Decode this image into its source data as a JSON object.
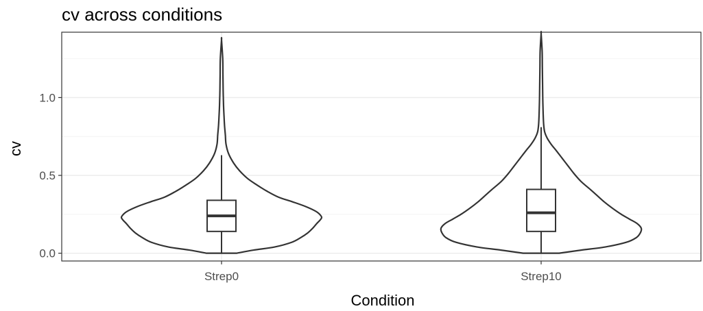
{
  "chart_data": {
    "type": "violin",
    "title": "cv across conditions",
    "xlabel": "Condition",
    "ylabel": "cv",
    "categories": [
      "Strep0",
      "Strep10"
    ],
    "ylim": [
      -0.05,
      1.42
    ],
    "y_ticks": [
      0.0,
      0.5,
      1.0
    ],
    "y_tick_labels": [
      "0.0",
      "0.5",
      "1.0"
    ],
    "grid": true,
    "legend": "none",
    "colors": {
      "outline": "#333333",
      "grid_major": "#ebebeb",
      "grid_minor": "#f4f4f4",
      "panel_border": "#333333",
      "background": "#ffffff"
    },
    "series": [
      {
        "category": "Strep0",
        "box": {
          "whisker_low": 0.0,
          "q1": 0.14,
          "median": 0.24,
          "q3": 0.34,
          "whisker_high": 0.63
        },
        "violin_min": 0.0,
        "violin_max": 1.37,
        "density": [
          [
            0.0,
            0.15
          ],
          [
            0.02,
            0.32
          ],
          [
            0.04,
            0.53
          ],
          [
            0.07,
            0.7
          ],
          [
            0.1,
            0.79
          ],
          [
            0.13,
            0.86
          ],
          [
            0.16,
            0.91
          ],
          [
            0.19,
            0.95
          ],
          [
            0.21,
            0.98
          ],
          [
            0.23,
            1.0
          ],
          [
            0.25,
            0.98
          ],
          [
            0.27,
            0.94
          ],
          [
            0.3,
            0.84
          ],
          [
            0.33,
            0.71
          ],
          [
            0.36,
            0.57
          ],
          [
            0.4,
            0.45
          ],
          [
            0.44,
            0.35
          ],
          [
            0.48,
            0.26
          ],
          [
            0.53,
            0.18
          ],
          [
            0.58,
            0.12
          ],
          [
            0.64,
            0.07
          ],
          [
            0.7,
            0.045
          ],
          [
            0.76,
            0.038
          ],
          [
            0.82,
            0.03
          ],
          [
            0.88,
            0.025
          ],
          [
            0.95,
            0.02
          ],
          [
            1.05,
            0.016
          ],
          [
            1.15,
            0.014
          ],
          [
            1.25,
            0.012
          ],
          [
            1.37,
            0.0
          ]
        ]
      },
      {
        "category": "Strep10",
        "box": {
          "whisker_low": 0.0,
          "q1": 0.14,
          "median": 0.26,
          "q3": 0.41,
          "whisker_high": 0.81
        },
        "violin_min": 0.0,
        "violin_max": 1.41,
        "density": [
          [
            0.0,
            0.18
          ],
          [
            0.02,
            0.4
          ],
          [
            0.04,
            0.64
          ],
          [
            0.07,
            0.85
          ],
          [
            0.1,
            0.95
          ],
          [
            0.13,
            0.99
          ],
          [
            0.16,
            1.0
          ],
          [
            0.19,
            0.96
          ],
          [
            0.22,
            0.88
          ],
          [
            0.25,
            0.8
          ],
          [
            0.29,
            0.71
          ],
          [
            0.33,
            0.63
          ],
          [
            0.37,
            0.56
          ],
          [
            0.41,
            0.49
          ],
          [
            0.46,
            0.4
          ],
          [
            0.51,
            0.33
          ],
          [
            0.56,
            0.27
          ],
          [
            0.61,
            0.21
          ],
          [
            0.66,
            0.15
          ],
          [
            0.7,
            0.1
          ],
          [
            0.74,
            0.06
          ],
          [
            0.78,
            0.035
          ],
          [
            0.83,
            0.025
          ],
          [
            0.9,
            0.02
          ],
          [
            1.0,
            0.016
          ],
          [
            1.1,
            0.014
          ],
          [
            1.2,
            0.012
          ],
          [
            1.3,
            0.01
          ],
          [
            1.41,
            0.0
          ]
        ]
      }
    ]
  }
}
